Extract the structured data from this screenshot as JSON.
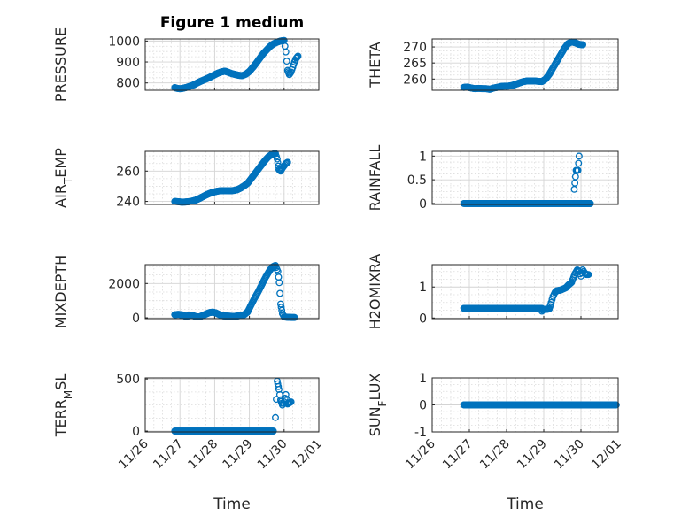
{
  "figure": {
    "title": "Figure 1 medium",
    "marker_color": "#0072BD"
  },
  "chart_data": [
    {
      "type": "scatter",
      "ylabel": "PRESSURE",
      "ylabel_sub": "",
      "ylabel_tail": "",
      "ylim": [
        765,
        1010
      ],
      "yticks": [
        800,
        900,
        1000
      ],
      "ytick_labels": [
        "800",
        "900",
        "1000"
      ],
      "xlim": [
        0,
        5
      ],
      "show_xticks": false,
      "title": "Figure 1 medium",
      "points": [
        [
          0.85,
          778
        ],
        [
          0.9,
          775
        ],
        [
          1.0,
          772
        ],
        [
          1.1,
          775
        ],
        [
          1.2,
          779
        ],
        [
          1.3,
          785
        ],
        [
          1.4,
          791
        ],
        [
          1.5,
          800
        ],
        [
          1.6,
          808
        ],
        [
          1.7,
          815
        ],
        [
          1.8,
          822
        ],
        [
          1.9,
          830
        ],
        [
          2.0,
          839
        ],
        [
          2.1,
          847
        ],
        [
          2.2,
          853
        ],
        [
          2.3,
          856
        ],
        [
          2.4,
          850
        ],
        [
          2.5,
          844
        ],
        [
          2.6,
          840
        ],
        [
          2.7,
          836
        ],
        [
          2.8,
          835
        ],
        [
          2.9,
          842
        ],
        [
          3.0,
          855
        ],
        [
          3.1,
          874
        ],
        [
          3.2,
          895
        ],
        [
          3.3,
          918
        ],
        [
          3.4,
          940
        ],
        [
          3.5,
          958
        ],
        [
          3.6,
          975
        ],
        [
          3.7,
          987
        ],
        [
          3.8,
          995
        ],
        [
          3.9,
          1000
        ],
        [
          4.0,
          1003
        ],
        [
          4.05,
          948
        ],
        [
          4.1,
          860
        ],
        [
          4.15,
          840
        ],
        [
          4.2,
          852
        ],
        [
          4.25,
          875
        ],
        [
          4.3,
          900
        ],
        [
          4.35,
          918
        ],
        [
          4.4,
          928
        ]
      ]
    },
    {
      "type": "scatter",
      "ylabel": "THETA",
      "ylabel_sub": "",
      "ylabel_tail": "",
      "ylim": [
        256.5,
        272.5
      ],
      "yticks": [
        260,
        265,
        270
      ],
      "ytick_labels": [
        "260",
        "265",
        "270"
      ],
      "xlim": [
        0,
        5
      ],
      "show_xticks": false,
      "points": [
        [
          0.85,
          257.4
        ],
        [
          0.95,
          257.5
        ],
        [
          1.05,
          257.2
        ],
        [
          1.15,
          257.0
        ],
        [
          1.25,
          257.1
        ],
        [
          1.35,
          257.0
        ],
        [
          1.45,
          257.0
        ],
        [
          1.55,
          256.8
        ],
        [
          1.65,
          257.2
        ],
        [
          1.75,
          257.4
        ],
        [
          1.85,
          257.7
        ],
        [
          1.95,
          257.8
        ],
        [
          2.05,
          257.8
        ],
        [
          2.15,
          258.0
        ],
        [
          2.25,
          258.4
        ],
        [
          2.35,
          258.8
        ],
        [
          2.45,
          259.2
        ],
        [
          2.55,
          259.4
        ],
        [
          2.65,
          259.4
        ],
        [
          2.75,
          259.4
        ],
        [
          2.85,
          259.3
        ],
        [
          2.95,
          259.2
        ],
        [
          3.05,
          260.0
        ],
        [
          3.15,
          261.5
        ],
        [
          3.25,
          263.5
        ],
        [
          3.35,
          265.5
        ],
        [
          3.45,
          267.5
        ],
        [
          3.55,
          269.5
        ],
        [
          3.65,
          271.0
        ],
        [
          3.75,
          271.6
        ],
        [
          3.85,
          271.3
        ],
        [
          3.95,
          270.8
        ],
        [
          4.05,
          270.7
        ]
      ]
    },
    {
      "type": "scatter",
      "ylabel": "AIR",
      "ylabel_sub": "T",
      "ylabel_tail": "EMP",
      "ylim": [
        238,
        273
      ],
      "yticks": [
        240,
        260
      ],
      "ytick_labels": [
        "240",
        "260"
      ],
      "xlim": [
        0,
        5
      ],
      "show_xticks": false,
      "points": [
        [
          0.85,
          240.0
        ],
        [
          0.95,
          239.8
        ],
        [
          1.05,
          239.5
        ],
        [
          1.15,
          239.6
        ],
        [
          1.25,
          239.8
        ],
        [
          1.35,
          240.2
        ],
        [
          1.45,
          240.8
        ],
        [
          1.55,
          241.8
        ],
        [
          1.65,
          243.0
        ],
        [
          1.75,
          244.2
        ],
        [
          1.85,
          245.2
        ],
        [
          1.95,
          246.0
        ],
        [
          2.05,
          246.6
        ],
        [
          2.15,
          247.0
        ],
        [
          2.25,
          247.1
        ],
        [
          2.35,
          247.1
        ],
        [
          2.45,
          247.0
        ],
        [
          2.55,
          247.2
        ],
        [
          2.65,
          247.7
        ],
        [
          2.75,
          248.8
        ],
        [
          2.85,
          250.3
        ],
        [
          2.95,
          252.0
        ],
        [
          3.05,
          255.0
        ],
        [
          3.15,
          258.0
        ],
        [
          3.25,
          261.0
        ],
        [
          3.35,
          264.0
        ],
        [
          3.45,
          267.0
        ],
        [
          3.55,
          269.5
        ],
        [
          3.65,
          271.0
        ],
        [
          3.75,
          271.6
        ],
        [
          3.8,
          268.0
        ],
        [
          3.85,
          261.0
        ],
        [
          3.9,
          260.0
        ],
        [
          3.95,
          262.0
        ],
        [
          4.0,
          263.5
        ],
        [
          4.05,
          265.0
        ],
        [
          4.1,
          265.8
        ]
      ]
    },
    {
      "type": "scatter",
      "ylabel": "RAINFALL",
      "ylabel_sub": "",
      "ylabel_tail": "",
      "ylim": [
        -0.02,
        1.1
      ],
      "yticks": [
        0,
        0.5,
        1
      ],
      "ytick_labels": [
        "0",
        "0.5",
        "1"
      ],
      "xlim": [
        0,
        5
      ],
      "show_xticks": false,
      "zero_run": [
        0.85,
        4.25
      ],
      "points": [
        [
          3.82,
          0.3
        ],
        [
          3.87,
          0.7
        ],
        [
          3.92,
          0.7
        ],
        [
          3.95,
          1.0
        ],
        [
          3.98,
          0.0
        ],
        [
          4.1,
          0.0
        ],
        [
          4.25,
          0.0
        ]
      ]
    },
    {
      "type": "scatter",
      "ylabel": "MIXDEPTH",
      "ylabel_sub": "",
      "ylabel_tail": "",
      "ylim": [
        -50,
        3100
      ],
      "yticks": [
        0,
        2000
      ],
      "ytick_labels": [
        "0",
        "2000"
      ],
      "xlim": [
        0,
        5
      ],
      "show_xticks": false,
      "points": [
        [
          0.85,
          180
        ],
        [
          0.95,
          200
        ],
        [
          1.05,
          180
        ],
        [
          1.15,
          90
        ],
        [
          1.25,
          110
        ],
        [
          1.35,
          150
        ],
        [
          1.45,
          70
        ],
        [
          1.55,
          50
        ],
        [
          1.65,
          120
        ],
        [
          1.75,
          220
        ],
        [
          1.85,
          300
        ],
        [
          1.95,
          330
        ],
        [
          2.05,
          270
        ],
        [
          2.15,
          170
        ],
        [
          2.25,
          110
        ],
        [
          2.35,
          100
        ],
        [
          2.45,
          90
        ],
        [
          2.55,
          80
        ],
        [
          2.65,
          100
        ],
        [
          2.75,
          140
        ],
        [
          2.85,
          180
        ],
        [
          2.95,
          340
        ],
        [
          3.05,
          750
        ],
        [
          3.15,
          1150
        ],
        [
          3.25,
          1500
        ],
        [
          3.35,
          1900
        ],
        [
          3.45,
          2300
        ],
        [
          3.55,
          2650
        ],
        [
          3.65,
          2950
        ],
        [
          3.75,
          3050
        ],
        [
          3.82,
          2700
        ],
        [
          3.86,
          2050
        ],
        [
          3.9,
          800
        ],
        [
          3.95,
          250
        ],
        [
          4.0,
          50
        ],
        [
          4.1,
          30
        ],
        [
          4.2,
          20
        ],
        [
          4.3,
          20
        ]
      ]
    },
    {
      "type": "scatter",
      "ylabel": "H2OMIXRA",
      "ylabel_sub": "",
      "ylabel_tail": "",
      "ylim": [
        -0.02,
        1.72
      ],
      "yticks": [
        0,
        1
      ],
      "ytick_labels": [
        "0",
        "1"
      ],
      "xlim": [
        0,
        5
      ],
      "show_xticks": false,
      "flat_run": [
        0.85,
        2.95,
        0.31
      ],
      "points": [
        [
          2.95,
          0.22
        ],
        [
          3.0,
          0.28
        ],
        [
          3.05,
          0.28
        ],
        [
          3.1,
          0.28
        ],
        [
          3.15,
          0.3
        ],
        [
          3.2,
          0.5
        ],
        [
          3.25,
          0.7
        ],
        [
          3.3,
          0.82
        ],
        [
          3.35,
          0.88
        ],
        [
          3.45,
          0.9
        ],
        [
          3.55,
          0.95
        ],
        [
          3.6,
          0.98
        ],
        [
          3.65,
          1.05
        ],
        [
          3.75,
          1.15
        ],
        [
          3.8,
          1.3
        ],
        [
          3.85,
          1.45
        ],
        [
          3.9,
          1.55
        ],
        [
          3.95,
          1.5
        ],
        [
          4.0,
          1.35
        ],
        [
          4.05,
          1.55
        ],
        [
          4.1,
          1.45
        ],
        [
          4.15,
          1.4
        ],
        [
          4.2,
          1.4
        ]
      ]
    },
    {
      "type": "scatter",
      "ylabel": "TERR",
      "ylabel_sub": "M",
      "ylabel_tail": "SL",
      "ylim": [
        -8,
        510
      ],
      "yticks": [
        0,
        500
      ],
      "ytick_labels": [
        "0",
        "500"
      ],
      "xlim": [
        0,
        5
      ],
      "show_xticks": true,
      "xlabel": "Time",
      "xticks": [
        0,
        1,
        2,
        3,
        4,
        5
      ],
      "xtick_labels": [
        "11/26",
        "11/27",
        "11/28",
        "11/29",
        "11/30",
        "12/01"
      ],
      "zero_run": [
        0.85,
        3.7
      ],
      "points": [
        [
          3.75,
          130
        ],
        [
          3.8,
          480
        ],
        [
          3.85,
          400
        ],
        [
          3.9,
          300
        ],
        [
          3.95,
          250
        ],
        [
          4.0,
          280
        ],
        [
          4.05,
          350
        ],
        [
          4.1,
          260
        ],
        [
          4.15,
          270
        ],
        [
          4.2,
          280
        ]
      ]
    },
    {
      "type": "scatter",
      "ylabel": "SUN",
      "ylabel_sub": "F",
      "ylabel_tail": "LUX",
      "ylim": [
        -1,
        1
      ],
      "yticks": [
        -1,
        0,
        1
      ],
      "ytick_labels": [
        "-1",
        "0",
        "1"
      ],
      "xlim": [
        0,
        5
      ],
      "show_xticks": true,
      "xlabel": "Time",
      "xticks": [
        0,
        1,
        2,
        3,
        4,
        5
      ],
      "xtick_labels": [
        "11/26",
        "11/27",
        "11/28",
        "11/29",
        "11/30",
        "12/01"
      ],
      "zero_run": [
        0.85,
        4.95
      ],
      "points": []
    }
  ]
}
